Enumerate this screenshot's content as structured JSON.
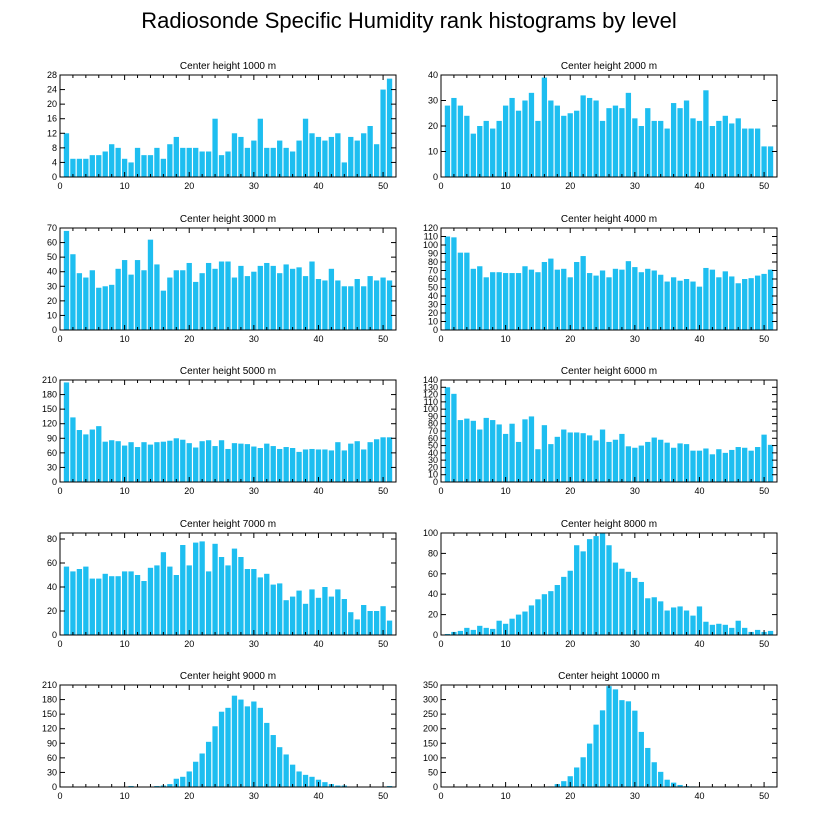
{
  "figure": {
    "title": "Radiosonde Specific Humidity rank histograms by level",
    "bar_color": "#1EBEF0",
    "frame_color": "#000000"
  },
  "chart_data": [
    {
      "type": "bar",
      "title": "Center height 1000 m",
      "x": [
        1,
        2,
        3,
        4,
        5,
        6,
        7,
        8,
        9,
        10,
        11,
        12,
        13,
        14,
        15,
        16,
        17,
        18,
        19,
        20,
        21,
        22,
        23,
        24,
        25,
        26,
        27,
        28,
        29,
        30,
        31,
        32,
        33,
        34,
        35,
        36,
        37,
        38,
        39,
        40,
        41,
        42,
        43,
        44,
        45,
        46,
        47,
        48,
        49,
        50,
        51
      ],
      "values": [
        12,
        5,
        5,
        5,
        6,
        6,
        7,
        9,
        8,
        5,
        4,
        8,
        6,
        6,
        8,
        5,
        9,
        11,
        8,
        8,
        8,
        7,
        7,
        16,
        6,
        7,
        12,
        11,
        8,
        10,
        16,
        8,
        8,
        10,
        8,
        7,
        10,
        16,
        12,
        11,
        10,
        11,
        12,
        4,
        11,
        10,
        12,
        14,
        9,
        24,
        27
      ],
      "xlim": [
        0,
        52
      ],
      "ylim": [
        0,
        28
      ],
      "xticks": [
        0,
        10,
        20,
        30,
        40,
        50
      ],
      "yticks": [
        0,
        4,
        8,
        12,
        16,
        20,
        24,
        28
      ]
    },
    {
      "type": "bar",
      "title": "Center height 2000 m",
      "x": [
        1,
        2,
        3,
        4,
        5,
        6,
        7,
        8,
        9,
        10,
        11,
        12,
        13,
        14,
        15,
        16,
        17,
        18,
        19,
        20,
        21,
        22,
        23,
        24,
        25,
        26,
        27,
        28,
        29,
        30,
        31,
        32,
        33,
        34,
        35,
        36,
        37,
        38,
        39,
        40,
        41,
        42,
        43,
        44,
        45,
        46,
        47,
        48,
        49,
        50,
        51
      ],
      "values": [
        28,
        31,
        28,
        24,
        17,
        20,
        22,
        19,
        22,
        28,
        31,
        26,
        30,
        33,
        22,
        39,
        30,
        28,
        24,
        25,
        26,
        32,
        31,
        30,
        22,
        27,
        28,
        27,
        33,
        23,
        20,
        27,
        22,
        22,
        19,
        29,
        27,
        30,
        23,
        22,
        34,
        20,
        22,
        24,
        21,
        23,
        19,
        19,
        19,
        12,
        12
      ],
      "xlim": [
        0,
        52
      ],
      "ylim": [
        0,
        40
      ],
      "xticks": [
        0,
        10,
        20,
        30,
        40,
        50
      ],
      "yticks": [
        0,
        10,
        20,
        30,
        40
      ]
    },
    {
      "type": "bar",
      "title": "Center height 3000 m",
      "x": [
        1,
        2,
        3,
        4,
        5,
        6,
        7,
        8,
        9,
        10,
        11,
        12,
        13,
        14,
        15,
        16,
        17,
        18,
        19,
        20,
        21,
        22,
        23,
        24,
        25,
        26,
        27,
        28,
        29,
        30,
        31,
        32,
        33,
        34,
        35,
        36,
        37,
        38,
        39,
        40,
        41,
        42,
        43,
        44,
        45,
        46,
        47,
        48,
        49,
        50,
        51
      ],
      "values": [
        68,
        52,
        39,
        36,
        41,
        29,
        30,
        31,
        42,
        48,
        38,
        48,
        41,
        62,
        45,
        27,
        36,
        41,
        41,
        46,
        33,
        39,
        46,
        42,
        47,
        47,
        36,
        44,
        37,
        40,
        44,
        46,
        44,
        39,
        45,
        42,
        43,
        37,
        47,
        35,
        34,
        42,
        34,
        30,
        30,
        35,
        30,
        37,
        34,
        36,
        34
      ],
      "xlim": [
        0,
        52
      ],
      "ylim": [
        0,
        70
      ],
      "xticks": [
        0,
        10,
        20,
        30,
        40,
        50
      ],
      "yticks": [
        0,
        10,
        20,
        30,
        40,
        50,
        60,
        70
      ]
    },
    {
      "type": "bar",
      "title": "Center height 4000 m",
      "x": [
        1,
        2,
        3,
        4,
        5,
        6,
        7,
        8,
        9,
        10,
        11,
        12,
        13,
        14,
        15,
        16,
        17,
        18,
        19,
        20,
        21,
        22,
        23,
        24,
        25,
        26,
        27,
        28,
        29,
        30,
        31,
        32,
        33,
        34,
        35,
        36,
        37,
        38,
        39,
        40,
        41,
        42,
        43,
        44,
        45,
        46,
        47,
        48,
        49,
        50,
        51
      ],
      "values": [
        110,
        109,
        91,
        91,
        72,
        75,
        62,
        68,
        68,
        67,
        67,
        67,
        75,
        71,
        68,
        80,
        84,
        71,
        72,
        62,
        80,
        87,
        67,
        64,
        70,
        62,
        72,
        71,
        81,
        74,
        68,
        72,
        70,
        65,
        57,
        62,
        58,
        60,
        57,
        51,
        73,
        71,
        62,
        69,
        63,
        55,
        60,
        61,
        64,
        66,
        71
      ],
      "xlim": [
        0,
        52
      ],
      "ylim": [
        0,
        120
      ],
      "xticks": [
        0,
        10,
        20,
        30,
        40,
        50
      ],
      "yticks": [
        0,
        10,
        20,
        30,
        40,
        50,
        60,
        70,
        80,
        90,
        100,
        110,
        120
      ]
    },
    {
      "type": "bar",
      "title": "Center height 5000 m",
      "x": [
        1,
        2,
        3,
        4,
        5,
        6,
        7,
        8,
        9,
        10,
        11,
        12,
        13,
        14,
        15,
        16,
        17,
        18,
        19,
        20,
        21,
        22,
        23,
        24,
        25,
        26,
        27,
        28,
        29,
        30,
        31,
        32,
        33,
        34,
        35,
        36,
        37,
        38,
        39,
        40,
        41,
        42,
        43,
        44,
        45,
        46,
        47,
        48,
        49,
        50,
        51
      ],
      "values": [
        205,
        133,
        107,
        98,
        108,
        115,
        83,
        86,
        84,
        75,
        82,
        72,
        82,
        77,
        82,
        83,
        85,
        90,
        87,
        80,
        71,
        84,
        86,
        74,
        86,
        68,
        80,
        79,
        78,
        73,
        70,
        79,
        74,
        68,
        72,
        70,
        62,
        67,
        68,
        67,
        67,
        65,
        82,
        65,
        79,
        84,
        67,
        82,
        88,
        92,
        92
      ],
      "xlim": [
        0,
        52
      ],
      "ylim": [
        0,
        210
      ],
      "xticks": [
        0,
        10,
        20,
        30,
        40,
        50
      ],
      "yticks": [
        0,
        30,
        60,
        90,
        120,
        150,
        180,
        210
      ]
    },
    {
      "type": "bar",
      "title": "Center height 6000 m",
      "x": [
        1,
        2,
        3,
        4,
        5,
        6,
        7,
        8,
        9,
        10,
        11,
        12,
        13,
        14,
        15,
        16,
        17,
        18,
        19,
        20,
        21,
        22,
        23,
        24,
        25,
        26,
        27,
        28,
        29,
        30,
        31,
        32,
        33,
        34,
        35,
        36,
        37,
        38,
        39,
        40,
        41,
        42,
        43,
        44,
        45,
        46,
        47,
        48,
        49,
        50,
        51
      ],
      "values": [
        130,
        121,
        85,
        87,
        84,
        72,
        88,
        85,
        79,
        66,
        80,
        55,
        86,
        90,
        45,
        78,
        52,
        62,
        72,
        68,
        68,
        67,
        64,
        57,
        72,
        55,
        58,
        66,
        49,
        47,
        50,
        55,
        61,
        58,
        54,
        47,
        53,
        52,
        43,
        43,
        46,
        38,
        45,
        40,
        44,
        48,
        47,
        43,
        48,
        65,
        51
      ],
      "xlim": [
        0,
        52
      ],
      "ylim": [
        0,
        140
      ],
      "xticks": [
        0,
        10,
        20,
        30,
        40,
        50
      ],
      "yticks": [
        0,
        10,
        20,
        30,
        40,
        50,
        60,
        70,
        80,
        90,
        100,
        110,
        120,
        130,
        140
      ]
    },
    {
      "type": "bar",
      "title": "Center height 7000 m",
      "x": [
        1,
        2,
        3,
        4,
        5,
        6,
        7,
        8,
        9,
        10,
        11,
        12,
        13,
        14,
        15,
        16,
        17,
        18,
        19,
        20,
        21,
        22,
        23,
        24,
        25,
        26,
        27,
        28,
        29,
        30,
        31,
        32,
        33,
        34,
        35,
        36,
        37,
        38,
        39,
        40,
        41,
        42,
        43,
        44,
        45,
        46,
        47,
        48,
        49,
        50,
        51
      ],
      "values": [
        57,
        53,
        55,
        57,
        47,
        47,
        51,
        49,
        49,
        53,
        53,
        50,
        45,
        56,
        58,
        69,
        57,
        50,
        75,
        58,
        77,
        78,
        53,
        76,
        65,
        58,
        72,
        65,
        55,
        55,
        48,
        51,
        42,
        43,
        29,
        32,
        37,
        26,
        38,
        31,
        40,
        32,
        38,
        30,
        19,
        13,
        25,
        20,
        20,
        24,
        12
      ],
      "xlim": [
        0,
        52
      ],
      "ylim": [
        0,
        85
      ],
      "xticks": [
        0,
        10,
        20,
        30,
        40,
        50
      ],
      "yticks": [
        0,
        20,
        40,
        60,
        80
      ]
    },
    {
      "type": "bar",
      "title": "Center height 8000 m",
      "x": [
        1,
        2,
        3,
        4,
        5,
        6,
        7,
        8,
        9,
        10,
        11,
        12,
        13,
        14,
        15,
        16,
        17,
        18,
        19,
        20,
        21,
        22,
        23,
        24,
        25,
        26,
        27,
        28,
        29,
        30,
        31,
        32,
        33,
        34,
        35,
        36,
        37,
        38,
        39,
        40,
        41,
        42,
        43,
        44,
        45,
        46,
        47,
        48,
        49,
        50,
        51
      ],
      "values": [
        1,
        3,
        4,
        7,
        5,
        9,
        7,
        6,
        14,
        11,
        16,
        20,
        23,
        29,
        35,
        40,
        43,
        49,
        57,
        63,
        88,
        82,
        94,
        97,
        100,
        88,
        71,
        65,
        62,
        56,
        52,
        36,
        37,
        33,
        24,
        27,
        28,
        24,
        19,
        28,
        13,
        10,
        11,
        10,
        7,
        14,
        7,
        3,
        5,
        3,
        4
      ],
      "xlim": [
        0,
        52
      ],
      "ylim": [
        0,
        100
      ],
      "xticks": [
        0,
        10,
        20,
        30,
        40,
        50
      ],
      "yticks": [
        0,
        20,
        40,
        60,
        80,
        100
      ]
    },
    {
      "type": "bar",
      "title": "Center height 9000 m",
      "x": [
        1,
        2,
        3,
        4,
        5,
        6,
        7,
        8,
        9,
        10,
        11,
        12,
        13,
        14,
        15,
        16,
        17,
        18,
        19,
        20,
        21,
        22,
        23,
        24,
        25,
        26,
        27,
        28,
        29,
        30,
        31,
        32,
        33,
        34,
        35,
        36,
        37,
        38,
        39,
        40,
        41,
        42,
        43,
        44,
        45,
        46,
        47,
        48,
        49,
        50,
        51
      ],
      "values": [
        0,
        0,
        0,
        0,
        0,
        0,
        0,
        0,
        0,
        0,
        2,
        1,
        1,
        1,
        2,
        3,
        6,
        17,
        21,
        32,
        52,
        69,
        93,
        125,
        155,
        163,
        188,
        180,
        166,
        176,
        163,
        132,
        107,
        82,
        67,
        46,
        32,
        25,
        21,
        15,
        10,
        6,
        3,
        3,
        1,
        1,
        1,
        1,
        1,
        1,
        2
      ],
      "xlim": [
        0,
        52
      ],
      "ylim": [
        0,
        210
      ],
      "xticks": [
        0,
        10,
        20,
        30,
        40,
        50
      ],
      "yticks": [
        0,
        30,
        60,
        90,
        120,
        150,
        180,
        210
      ]
    },
    {
      "type": "bar",
      "title": "Center height 10000 m",
      "x": [
        1,
        2,
        3,
        4,
        5,
        6,
        7,
        8,
        9,
        10,
        11,
        12,
        13,
        14,
        15,
        16,
        17,
        18,
        19,
        20,
        21,
        22,
        23,
        24,
        25,
        26,
        27,
        28,
        29,
        30,
        31,
        32,
        33,
        34,
        35,
        36,
        37,
        38,
        39,
        40,
        41,
        42,
        43,
        44,
        45,
        46,
        47,
        48,
        49,
        50,
        51
      ],
      "values": [
        0,
        0,
        0,
        0,
        0,
        0,
        0,
        0,
        0,
        0,
        0,
        0,
        0,
        0,
        0,
        0,
        2,
        10,
        20,
        37,
        67,
        102,
        149,
        214,
        263,
        346,
        335,
        298,
        294,
        262,
        189,
        134,
        85,
        52,
        25,
        15,
        7,
        3,
        2,
        1,
        1,
        1,
        1,
        1,
        1,
        1,
        1,
        1,
        1,
        1,
        2
      ],
      "xlim": [
        0,
        52
      ],
      "ylim": [
        0,
        350
      ],
      "xticks": [
        0,
        10,
        20,
        30,
        40,
        50
      ],
      "yticks": [
        0,
        50,
        100,
        150,
        200,
        250,
        300,
        350
      ]
    }
  ]
}
